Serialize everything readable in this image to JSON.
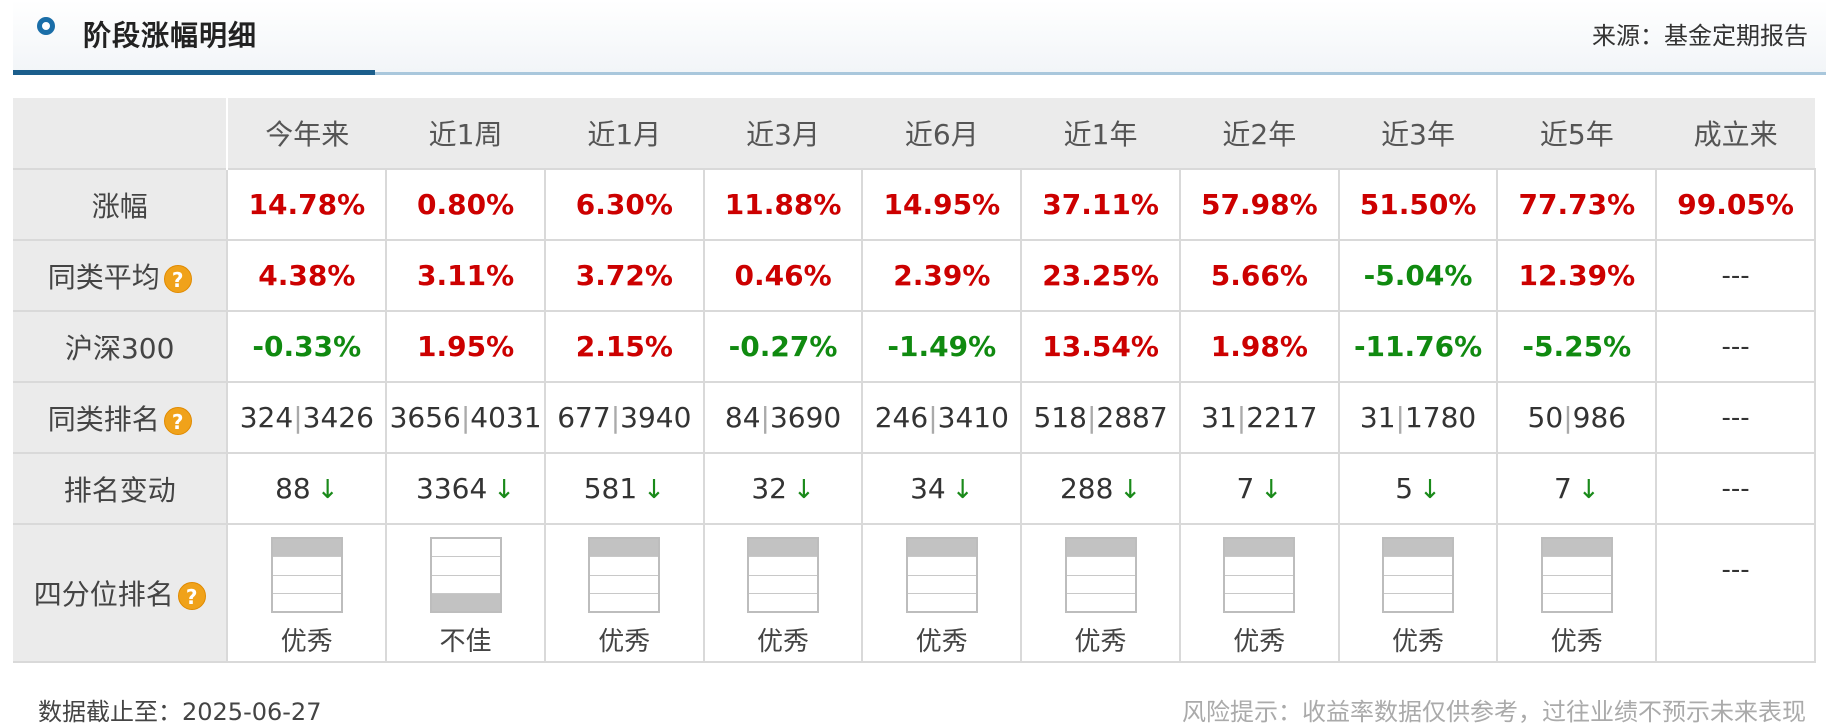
{
  "header": {
    "title": "阶段涨幅明细",
    "source": "来源：基金定期报告"
  },
  "columns": [
    "今年来",
    "近1周",
    "近1月",
    "近3月",
    "近6月",
    "近1年",
    "近2年",
    "近3年",
    "近5年",
    "成立来"
  ],
  "rows": {
    "gain": {
      "label": "涨幅",
      "values": [
        {
          "v": "14.78%",
          "c": "red"
        },
        {
          "v": "0.80%",
          "c": "red"
        },
        {
          "v": "6.30%",
          "c": "red"
        },
        {
          "v": "11.88%",
          "c": "red"
        },
        {
          "v": "14.95%",
          "c": "red"
        },
        {
          "v": "37.11%",
          "c": "red"
        },
        {
          "v": "57.98%",
          "c": "red"
        },
        {
          "v": "51.50%",
          "c": "red"
        },
        {
          "v": "77.73%",
          "c": "red"
        },
        {
          "v": "99.05%",
          "c": "red"
        }
      ]
    },
    "avg": {
      "label": "同类平均",
      "values": [
        {
          "v": "4.38%",
          "c": "red"
        },
        {
          "v": "3.11%",
          "c": "red"
        },
        {
          "v": "3.72%",
          "c": "red"
        },
        {
          "v": "0.46%",
          "c": "red"
        },
        {
          "v": "2.39%",
          "c": "red"
        },
        {
          "v": "23.25%",
          "c": "red"
        },
        {
          "v": "5.66%",
          "c": "red"
        },
        {
          "v": "-5.04%",
          "c": "green"
        },
        {
          "v": "12.39%",
          "c": "red"
        },
        {
          "v": "---",
          "c": "dash"
        }
      ]
    },
    "hs300": {
      "label": "沪深300",
      "values": [
        {
          "v": "-0.33%",
          "c": "green"
        },
        {
          "v": "1.95%",
          "c": "red"
        },
        {
          "v": "2.15%",
          "c": "red"
        },
        {
          "v": "-0.27%",
          "c": "green"
        },
        {
          "v": "-1.49%",
          "c": "green"
        },
        {
          "v": "13.54%",
          "c": "red"
        },
        {
          "v": "1.98%",
          "c": "red"
        },
        {
          "v": "-11.76%",
          "c": "green"
        },
        {
          "v": "-5.25%",
          "c": "green"
        },
        {
          "v": "---",
          "c": "dash"
        }
      ]
    },
    "rank": {
      "label": "同类排名",
      "values": [
        {
          "a": "324",
          "b": "3426"
        },
        {
          "a": "3656",
          "b": "4031"
        },
        {
          "a": "677",
          "b": "3940"
        },
        {
          "a": "84",
          "b": "3690"
        },
        {
          "a": "246",
          "b": "3410"
        },
        {
          "a": "518",
          "b": "2887"
        },
        {
          "a": "31",
          "b": "2217"
        },
        {
          "a": "31",
          "b": "1780"
        },
        {
          "a": "50",
          "b": "986"
        },
        {
          "dash": "---"
        }
      ]
    },
    "change": {
      "label": "排名变动",
      "values": [
        {
          "v": "88",
          "arrow": "↓"
        },
        {
          "v": "3364",
          "arrow": "↓"
        },
        {
          "v": "581",
          "arrow": "↓"
        },
        {
          "v": "32",
          "arrow": "↓"
        },
        {
          "v": "34",
          "arrow": "↓"
        },
        {
          "v": "288",
          "arrow": "↓"
        },
        {
          "v": "7",
          "arrow": "↓"
        },
        {
          "v": "5",
          "arrow": "↓"
        },
        {
          "v": "7",
          "arrow": "↓"
        },
        {
          "dash": "---"
        }
      ]
    },
    "quartile": {
      "label": "四分位排名",
      "values": [
        {
          "q": 1,
          "label": "优秀"
        },
        {
          "q": 4,
          "label": "不佳"
        },
        {
          "q": 1,
          "label": "优秀"
        },
        {
          "q": 1,
          "label": "优秀"
        },
        {
          "q": 1,
          "label": "优秀"
        },
        {
          "q": 1,
          "label": "优秀"
        },
        {
          "q": 1,
          "label": "优秀"
        },
        {
          "q": 1,
          "label": "优秀"
        },
        {
          "q": 1,
          "label": "优秀"
        },
        {
          "dash": "---"
        }
      ]
    }
  },
  "help_icon": "?",
  "footer": {
    "date": "数据截止至：2025-06-27",
    "risk": "风险提示：收益率数据仅供参考，过往业绩不预示未来表现"
  },
  "colors": {
    "red": "#cc0000",
    "green": "#108a10",
    "accent": "#1b5e8c"
  }
}
